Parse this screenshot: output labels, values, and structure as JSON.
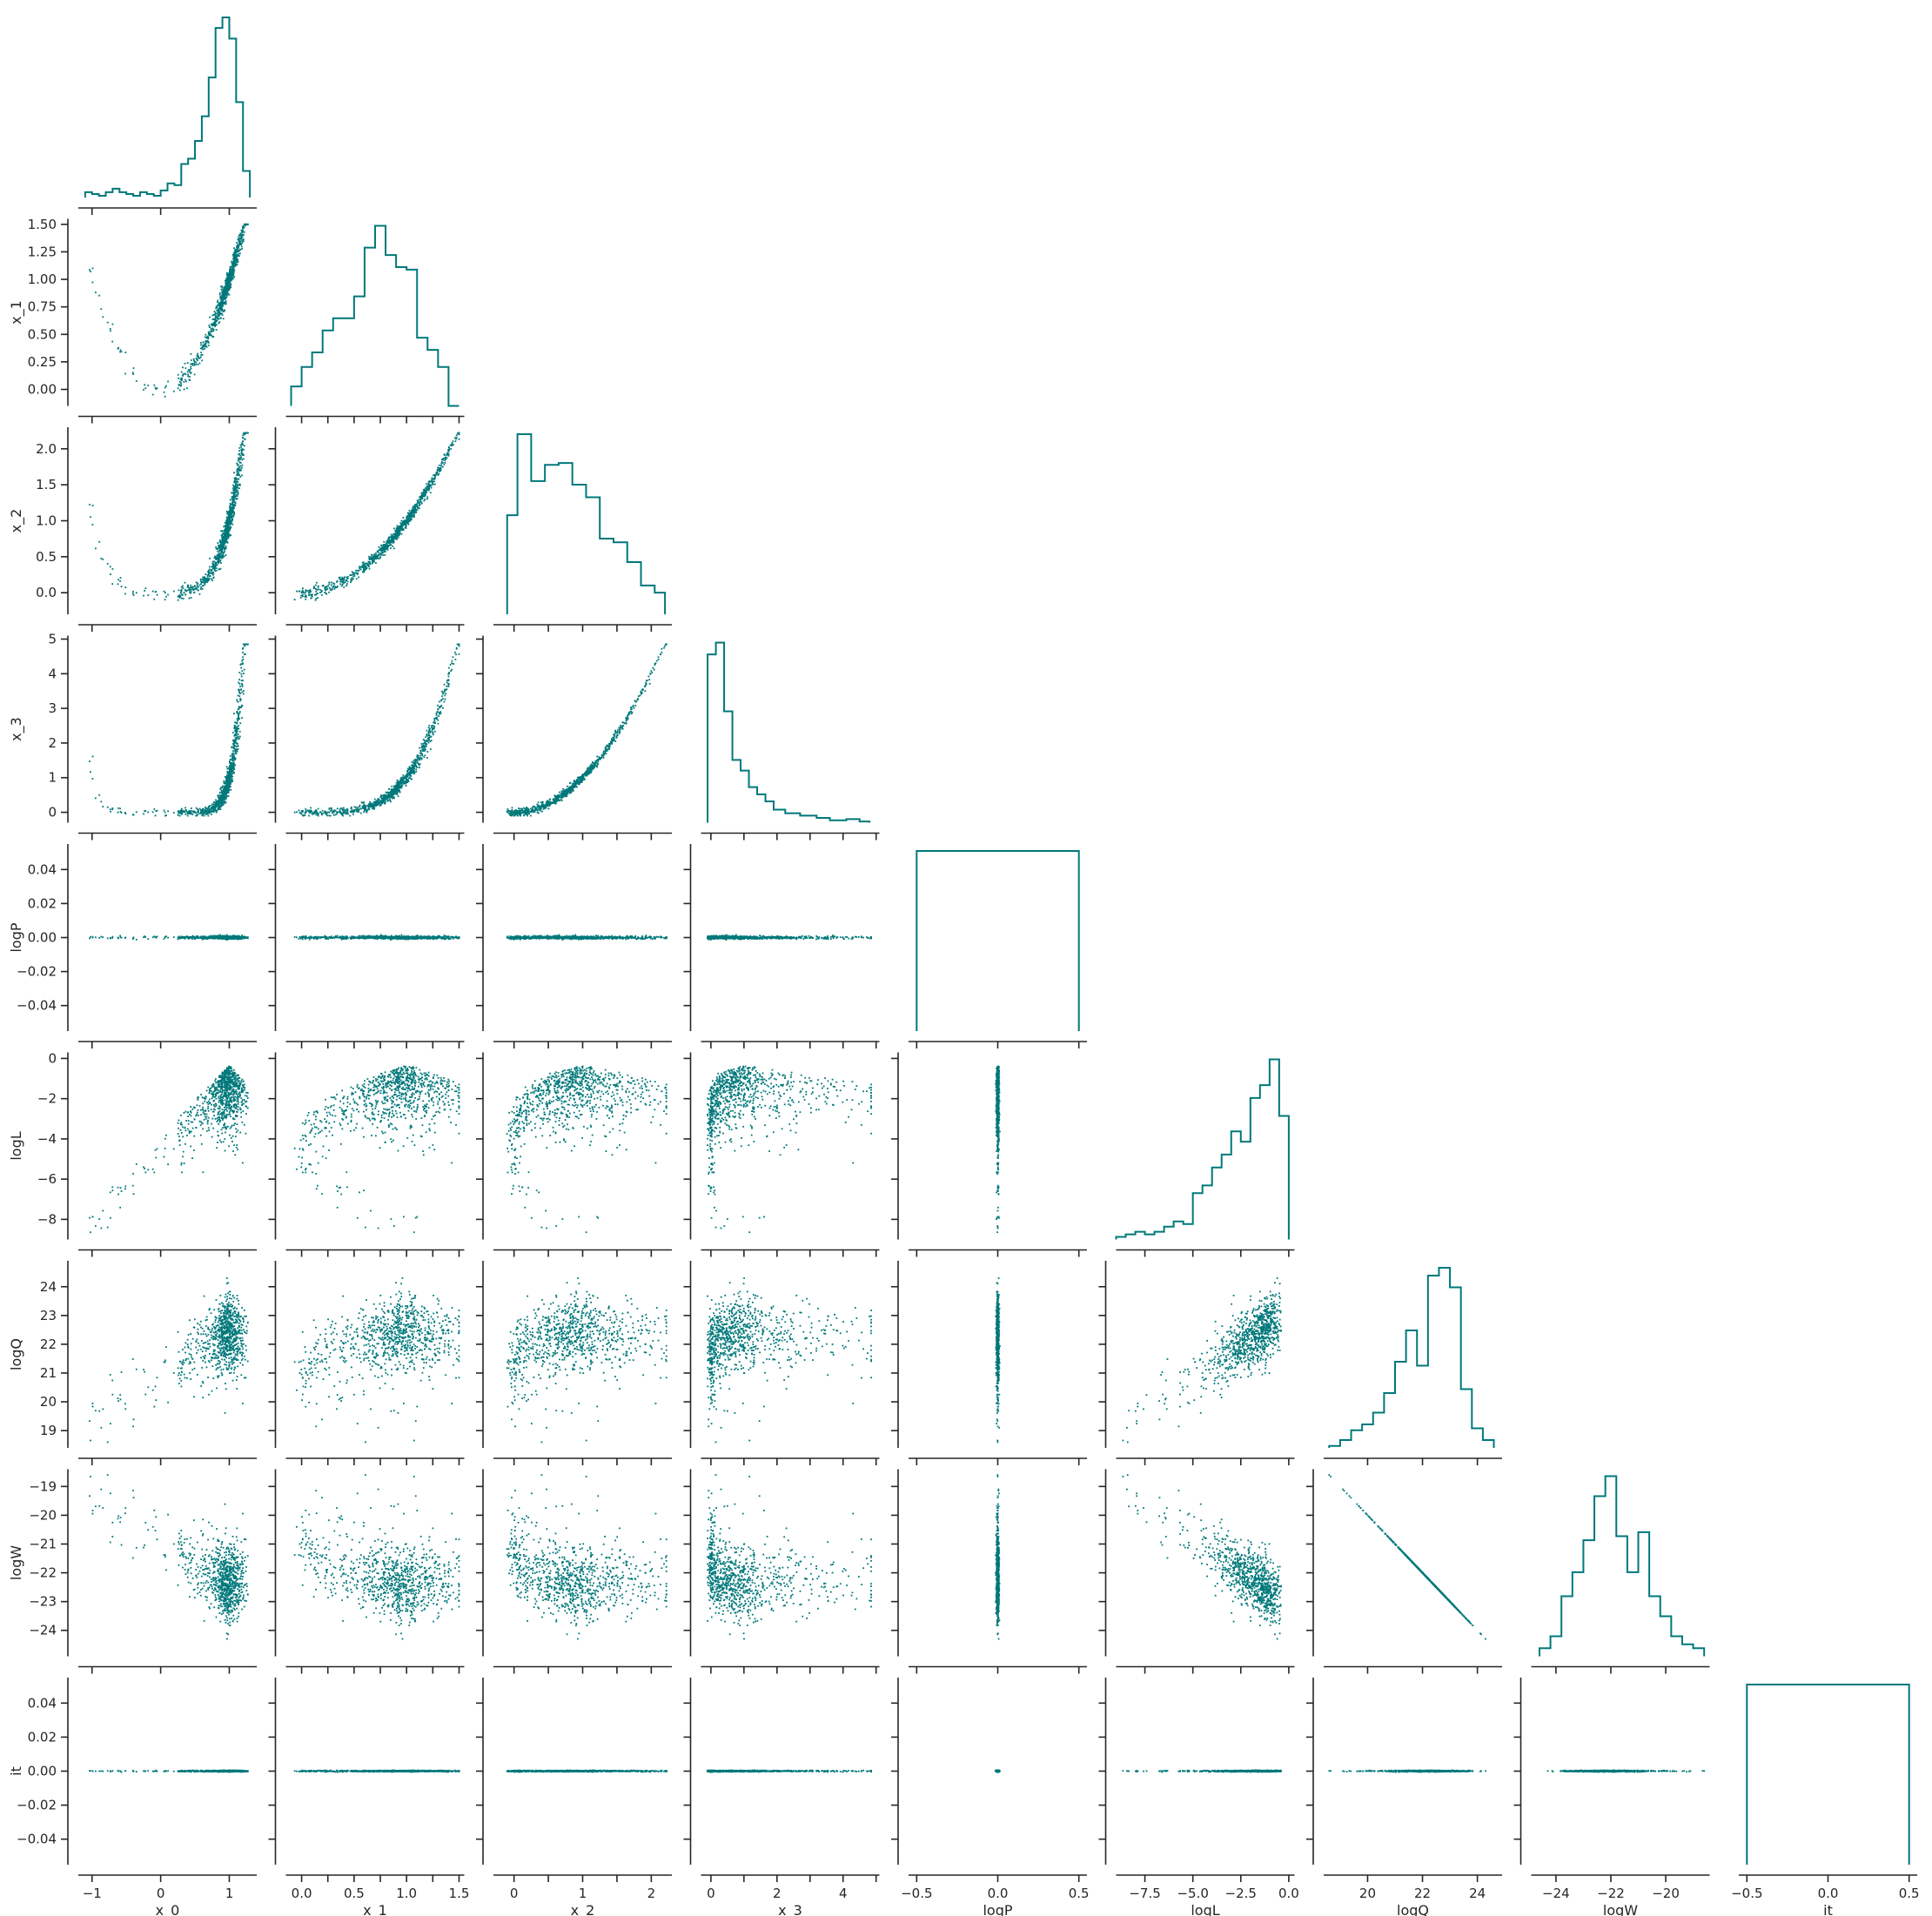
{
  "chart_data": {
    "type": "pairplot",
    "layout": "lower-triangular corner plot",
    "color": "#00787a",
    "variables": [
      "x_0",
      "x_1",
      "x_2",
      "x_3",
      "logP",
      "logL",
      "logQ",
      "logW",
      "it"
    ],
    "axes": [
      {
        "name": "x_0",
        "range": [
          -1.2,
          1.4
        ],
        "ticks": [
          -1,
          0,
          1
        ],
        "tick_labels": [
          "−1",
          "0",
          "1"
        ]
      },
      {
        "name": "x_1",
        "range": [
          -0.15,
          1.55
        ],
        "ticks": [
          0,
          0.25,
          0.5,
          0.75,
          1,
          1.25,
          1.5
        ],
        "tick_labels": [
          "0.00",
          "0.25",
          "0.50",
          "0.75",
          "1.00",
          "1.25",
          "1.50"
        ],
        "x_tick_labels": [
          "0.0",
          "",
          "0.5",
          "",
          "1.0",
          "",
          "1.5"
        ]
      },
      {
        "name": "x_2",
        "range": [
          -0.3,
          2.3
        ],
        "ticks": [
          0,
          0.5,
          1,
          1.5,
          2
        ],
        "tick_labels": [
          "0.0",
          "0.5",
          "1.0",
          "1.5",
          "2.0"
        ],
        "x_tick_labels": [
          "0",
          "",
          "1",
          "",
          "2"
        ]
      },
      {
        "name": "x_3",
        "range": [
          -0.3,
          5.1
        ],
        "ticks": [
          0,
          1,
          2,
          3,
          4,
          5
        ],
        "tick_labels": [
          "0",
          "1",
          "2",
          "3",
          "4",
          "5"
        ],
        "x_tick_labels": [
          "0",
          "",
          "2",
          "",
          "4",
          ""
        ]
      },
      {
        "name": "logP",
        "range": [
          -0.055,
          0.055
        ],
        "x_range": [
          -0.55,
          0.55
        ],
        "ticks": [
          -0.04,
          -0.02,
          0,
          0.02,
          0.04
        ],
        "tick_labels": [
          "−0.04",
          "−0.02",
          "0.00",
          "0.02",
          "0.04"
        ],
        "x_ticks": [
          -0.5,
          0,
          0.5
        ],
        "x_tick_labels": [
          "−0.5",
          "0.0",
          "0.5"
        ]
      },
      {
        "name": "logL",
        "range": [
          -9,
          0.3
        ],
        "ticks": [
          -8,
          -6,
          -4,
          -2,
          0
        ],
        "tick_labels": [
          "−8",
          "−6",
          "−4",
          "−2",
          "0"
        ],
        "x_ticks": [
          -7.5,
          -5,
          -2.5,
          0
        ],
        "x_tick_labels": [
          "−7.5",
          "−5.0",
          "−2.5",
          "0.0"
        ]
      },
      {
        "name": "logQ",
        "range": [
          18.4,
          24.9
        ],
        "ticks": [
          19,
          20,
          21,
          22,
          23,
          24
        ],
        "tick_labels": [
          "19",
          "20",
          "21",
          "22",
          "23",
          "24"
        ],
        "x_ticks": [
          20,
          22,
          24
        ],
        "x_tick_labels": [
          "20",
          "22",
          "24"
        ]
      },
      {
        "name": "logW",
        "range": [
          -24.9,
          -18.4
        ],
        "ticks": [
          -24,
          -23,
          -22,
          -21,
          -20,
          -19
        ],
        "tick_labels": [
          "−24",
          "−23",
          "−22",
          "−21",
          "−20",
          "−19"
        ],
        "x_ticks": [
          -24,
          -22,
          -20
        ],
        "x_tick_labels": [
          "−24",
          "−22",
          "−20"
        ]
      },
      {
        "name": "it",
        "range": [
          -0.055,
          0.055
        ],
        "x_range": [
          -0.55,
          0.55
        ],
        "ticks": [
          -0.04,
          -0.02,
          0,
          0.02,
          0.04
        ],
        "tick_labels": [
          "−0.04",
          "−0.02",
          "0.00",
          "0.02",
          "0.04"
        ],
        "x_ticks": [
          -0.5,
          0,
          0.5
        ],
        "x_tick_labels": [
          "−0.5",
          "0.0",
          "0.5"
        ]
      }
    ],
    "histograms": {
      "x_0": {
        "edges": [
          -1.1,
          -1.0,
          -0.9,
          -0.8,
          -0.7,
          -0.6,
          -0.5,
          -0.4,
          -0.3,
          -0.2,
          -0.1,
          0.0,
          0.1,
          0.2,
          0.3,
          0.4,
          0.5,
          0.6,
          0.7,
          0.8,
          0.9,
          1.0,
          1.1,
          1.2,
          1.3
        ],
        "counts": [
          3,
          2,
          1,
          3,
          5,
          3,
          2,
          1,
          3,
          2,
          1,
          4,
          8,
          7,
          19,
          22,
          32,
          46,
          68,
          96,
          102,
          90,
          54,
          15
        ]
      },
      "x_1": {
        "edges": [
          -0.1,
          0.0,
          0.1,
          0.2,
          0.3,
          0.4,
          0.5,
          0.6,
          0.7,
          0.8,
          0.9,
          1.0,
          1.1,
          1.2,
          1.3,
          1.4,
          1.5
        ],
        "counts": [
          8,
          16,
          22,
          31,
          36,
          36,
          45,
          65,
          74,
          62,
          57,
          56,
          28,
          23,
          16,
          0
        ]
      },
      "x_2": {
        "edges": [
          -0.1,
          0.05,
          0.25,
          0.45,
          0.65,
          0.85,
          1.05,
          1.25,
          1.45,
          1.65,
          1.85,
          2.05,
          2.2
        ],
        "counts": [
          55,
          100,
          74,
          83,
          84,
          72,
          65,
          42,
          40,
          29,
          16,
          12
        ]
      },
      "x_3": {
        "edges": [
          -0.1,
          0.15,
          0.4,
          0.65,
          0.9,
          1.15,
          1.4,
          1.65,
          1.9,
          2.25,
          2.7,
          3.2,
          3.6,
          4.1,
          4.5,
          4.8
        ],
        "counts": [
          142,
          152,
          94,
          53,
          44,
          30,
          24,
          18,
          11,
          8,
          6,
          4,
          2,
          3,
          1
        ]
      },
      "logP": {
        "edges": [
          -0.5,
          0.5
        ],
        "counts": [
          1
        ]
      },
      "logL": {
        "edges": [
          -9.0,
          -8.5,
          -8.0,
          -7.5,
          -7.0,
          -6.5,
          -6.0,
          -5.5,
          -5.0,
          -4.5,
          -4.0,
          -3.5,
          -3.0,
          -2.5,
          -2.0,
          -1.5,
          -1.0,
          -0.5,
          0.0
        ],
        "counts": [
          1,
          2,
          3,
          2,
          3,
          5,
          7,
          6,
          18,
          21,
          28,
          33,
          42,
          38,
          55,
          60,
          70,
          48
        ]
      },
      "logQ": {
        "edges": [
          18.6,
          19.0,
          19.4,
          19.8,
          20.2,
          20.6,
          21.0,
          21.4,
          21.8,
          22.2,
          22.6,
          23.0,
          23.4,
          23.8,
          24.2,
          24.6
        ],
        "counts": [
          1,
          4,
          9,
          12,
          18,
          28,
          44,
          60,
          42,
          88,
          92,
          82,
          30,
          10,
          4
        ]
      },
      "logW": {
        "edges": [
          -24.6,
          -24.2,
          -23.8,
          -23.4,
          -23.0,
          -22.6,
          -22.2,
          -21.8,
          -21.4,
          -21.0,
          -20.6,
          -20.2,
          -19.8,
          -19.4,
          -19.0,
          -18.6
        ],
        "counts": [
          4,
          10,
          30,
          42,
          58,
          80,
          90,
          60,
          42,
          62,
          30,
          20,
          10,
          6,
          4
        ]
      },
      "it": {
        "edges": [
          -0.5,
          0.5
        ],
        "counts": [
          1
        ]
      }
    },
    "scatter_relations": {
      "samples": 900,
      "x_1": "approximately x_0 squared with noise",
      "x_2": "approximately x_1 squared",
      "x_3": "approximately x_2 squared",
      "logP": "constant 0",
      "logL": "rises toward 0 as x_0 approaches 1",
      "logQ": "increases with logL",
      "logW": "equals −logQ",
      "it": "constant 0"
    }
  }
}
